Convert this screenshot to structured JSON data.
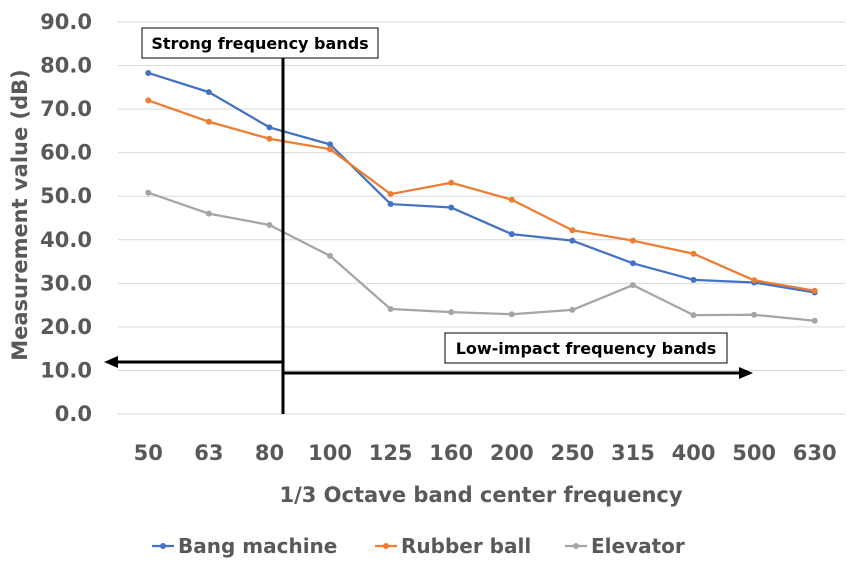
{
  "chart_data": {
    "type": "line",
    "title": "",
    "xlabel": "1/3 Octave band center frequency",
    "ylabel": "Measurement value (dB)",
    "categories": [
      "50",
      "63",
      "80",
      "100",
      "125",
      "160",
      "200",
      "250",
      "315",
      "400",
      "500",
      "630"
    ],
    "ylim": [
      0,
      90
    ],
    "yticks": [
      "0.0",
      "10.0",
      "20.0",
      "30.0",
      "40.0",
      "50.0",
      "60.0",
      "70.0",
      "80.0",
      "90.0"
    ],
    "grid": true,
    "legend_position": "bottom",
    "series": [
      {
        "name": "Bang machine",
        "color": "#4472c4",
        "values": [
          78.3,
          73.9,
          65.8,
          61.9,
          48.2,
          47.4,
          41.3,
          39.8,
          34.6,
          30.8,
          30.2,
          27.9
        ]
      },
      {
        "name": "Rubber ball",
        "color": "#ed7d31",
        "values": [
          72.0,
          67.1,
          63.2,
          60.8,
          50.5,
          53.1,
          49.2,
          42.2,
          39.8,
          36.8,
          30.7,
          28.3
        ]
      },
      {
        "name": "Elevator",
        "color": "#a5a5a5",
        "values": [
          50.8,
          46.0,
          43.4,
          36.3,
          24.1,
          23.4,
          22.9,
          23.9,
          29.6,
          22.7,
          22.8,
          21.4
        ]
      }
    ],
    "annotations": {
      "strong_label": "Strong frequency bands",
      "low_label": "Low-impact frequency bands"
    }
  }
}
